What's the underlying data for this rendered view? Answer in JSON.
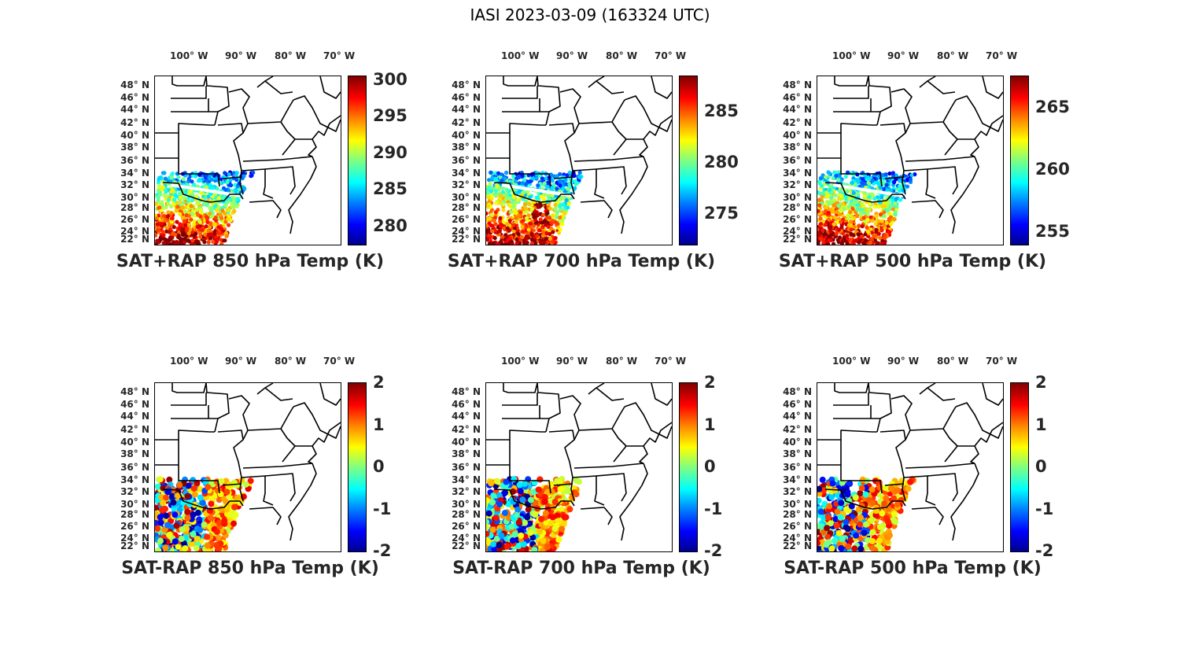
{
  "figure_title": "IASI 2023-03-09 (163324 UTC)",
  "lon_labels": [
    "100° W",
    "90° W",
    "80° W",
    "70° W"
  ],
  "lat_labels": [
    "48° N",
    "46° N",
    "44° N",
    "42° N",
    "40° N",
    "38° N",
    "36° N",
    "34° N",
    "32° N",
    "30° N",
    "28° N",
    "26° N",
    "24° N",
    "22° N"
  ],
  "panels": [
    {
      "title": "SAT+RAP 850 hPa Temp (K)",
      "colorbar_ticks": [
        "300",
        "295",
        "290",
        "285",
        "280"
      ],
      "clim": [
        277.5,
        300.5
      ],
      "kind": "abs"
    },
    {
      "title": "SAT+RAP 700 hPa Temp (K)",
      "colorbar_ticks": [
        "285",
        "280",
        "275"
      ],
      "clim": [
        272,
        288.5
      ],
      "kind": "abs"
    },
    {
      "title": "SAT+RAP 500 hPa Temp (K)",
      "colorbar_ticks": [
        "265",
        "260",
        "255"
      ],
      "clim": [
        254,
        267.5
      ],
      "kind": "abs"
    },
    {
      "title": "SAT-RAP 850 hPa Temp (K)",
      "colorbar_ticks": [
        "2",
        "1",
        "0",
        "-1",
        "-2"
      ],
      "clim": [
        -2,
        2
      ],
      "kind": "diff"
    },
    {
      "title": "SAT-RAP 700 hPa Temp (K)",
      "colorbar_ticks": [
        "2",
        "1",
        "0",
        "-1",
        "-2"
      ],
      "clim": [
        -2,
        2
      ],
      "kind": "diff"
    },
    {
      "title": "SAT-RAP 500 hPa Temp (K)",
      "colorbar_ticks": [
        "2",
        "1",
        "0",
        "-1",
        "-2"
      ],
      "clim": [
        -2,
        2
      ],
      "kind": "diff"
    }
  ],
  "colormap": "jet"
}
